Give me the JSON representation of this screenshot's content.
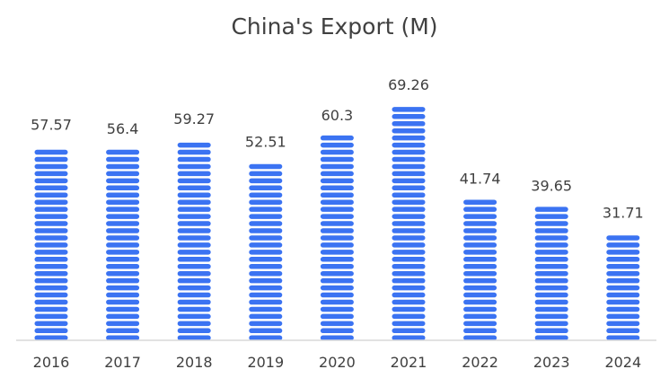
{
  "chart_data": {
    "type": "bar",
    "title": "China's Export (M)",
    "xlabel": "",
    "ylabel": "",
    "categories": [
      "2016",
      "2017",
      "2018",
      "2019",
      "2020",
      "2021",
      "2022",
      "2023",
      "2024"
    ],
    "series": [
      {
        "values": [
          57.57,
          56.4,
          59.27,
          52.51,
          60.3,
          69.26,
          41.74,
          39.65,
          31.71
        ],
        "data_labels": [
          "57.57",
          "56.4",
          "59.27",
          "52.51",
          "60.3",
          "69.26",
          "41.74",
          "39.65",
          "31.71"
        ],
        "color": "#3b73f2"
      }
    ],
    "ylim": [
      0,
      69.26
    ],
    "grid": false,
    "legend": "none"
  }
}
